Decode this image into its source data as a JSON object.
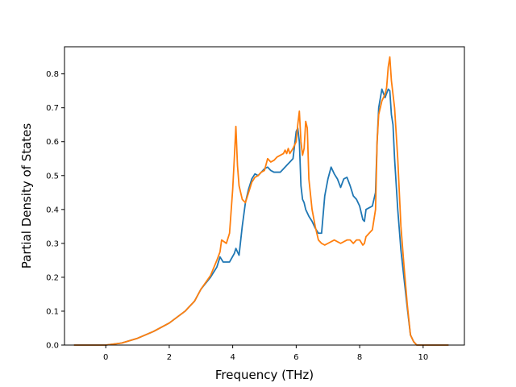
{
  "chart_data": {
    "type": "line",
    "title": "",
    "xlabel": "Frequency (THz)",
    "ylabel": "Partial Density of States",
    "xlim": [
      -1.3,
      11.3
    ],
    "ylim": [
      0.0,
      0.88
    ],
    "xticks": [
      0,
      2,
      4,
      6,
      8,
      10
    ],
    "yticks": [
      0.0,
      0.1,
      0.2,
      0.3,
      0.4,
      0.5,
      0.6,
      0.7,
      0.8
    ],
    "grid": false,
    "legend": "none",
    "series": [
      {
        "color": "#1f77b4",
        "x": [
          -1.0,
          0.0,
          0.5,
          1.0,
          1.5,
          2.0,
          2.5,
          2.8,
          3.0,
          3.3,
          3.5,
          3.6,
          3.7,
          3.9,
          4.05,
          4.1,
          4.2,
          4.3,
          4.4,
          4.5,
          4.6,
          4.7,
          4.8,
          4.9,
          5.0,
          5.1,
          5.2,
          5.3,
          5.5,
          5.6,
          5.7,
          5.8,
          5.9,
          6.0,
          6.05,
          6.1,
          6.15,
          6.2,
          6.25,
          6.3,
          6.4,
          6.5,
          6.6,
          6.7,
          6.8,
          6.9,
          7.0,
          7.1,
          7.2,
          7.3,
          7.4,
          7.5,
          7.6,
          7.7,
          7.8,
          7.9,
          8.0,
          8.1,
          8.15,
          8.2,
          8.3,
          8.4,
          8.5,
          8.55,
          8.6,
          8.7,
          8.8,
          8.9,
          8.95,
          9.0,
          9.05,
          9.1,
          9.2,
          9.3,
          9.5,
          9.6,
          9.7,
          9.8,
          10.0,
          10.8
        ],
        "y": [
          0.0,
          0.0,
          0.006,
          0.02,
          0.04,
          0.065,
          0.1,
          0.13,
          0.165,
          0.2,
          0.23,
          0.26,
          0.245,
          0.245,
          0.27,
          0.285,
          0.265,
          0.35,
          0.42,
          0.46,
          0.49,
          0.505,
          0.5,
          0.51,
          0.52,
          0.525,
          0.515,
          0.51,
          0.51,
          0.52,
          0.53,
          0.54,
          0.55,
          0.63,
          0.64,
          0.6,
          0.47,
          0.43,
          0.42,
          0.4,
          0.38,
          0.365,
          0.345,
          0.33,
          0.33,
          0.44,
          0.49,
          0.525,
          0.505,
          0.49,
          0.465,
          0.49,
          0.495,
          0.47,
          0.44,
          0.43,
          0.41,
          0.37,
          0.365,
          0.4,
          0.405,
          0.41,
          0.45,
          0.6,
          0.7,
          0.755,
          0.73,
          0.755,
          0.75,
          0.68,
          0.65,
          0.55,
          0.4,
          0.28,
          0.11,
          0.03,
          0.01,
          0.0,
          0.0,
          0.0
        ]
      },
      {
        "color": "#ff7f0e",
        "x": [
          -1.0,
          0.0,
          0.5,
          1.0,
          1.5,
          2.0,
          2.5,
          2.8,
          3.0,
          3.3,
          3.5,
          3.6,
          3.65,
          3.8,
          3.9,
          4.0,
          4.05,
          4.1,
          4.15,
          4.2,
          4.3,
          4.4,
          4.5,
          4.6,
          4.7,
          4.8,
          4.9,
          5.0,
          5.1,
          5.2,
          5.3,
          5.4,
          5.5,
          5.6,
          5.65,
          5.7,
          5.75,
          5.8,
          5.9,
          6.0,
          6.05,
          6.1,
          6.15,
          6.2,
          6.25,
          6.3,
          6.35,
          6.4,
          6.5,
          6.6,
          6.7,
          6.8,
          6.9,
          7.0,
          7.2,
          7.4,
          7.6,
          7.7,
          7.8,
          7.9,
          8.0,
          8.1,
          8.15,
          8.2,
          8.3,
          8.4,
          8.5,
          8.55,
          8.6,
          8.7,
          8.8,
          8.85,
          8.9,
          8.95,
          9.0,
          9.1,
          9.2,
          9.3,
          9.4,
          9.5,
          9.6,
          9.7,
          9.8,
          10.0,
          10.8
        ],
        "y": [
          0.0,
          0.0,
          0.006,
          0.02,
          0.04,
          0.065,
          0.1,
          0.13,
          0.165,
          0.205,
          0.25,
          0.275,
          0.31,
          0.3,
          0.33,
          0.46,
          0.55,
          0.645,
          0.53,
          0.47,
          0.43,
          0.42,
          0.45,
          0.48,
          0.495,
          0.5,
          0.51,
          0.515,
          0.55,
          0.54,
          0.545,
          0.555,
          0.56,
          0.565,
          0.575,
          0.565,
          0.58,
          0.565,
          0.58,
          0.6,
          0.65,
          0.69,
          0.6,
          0.56,
          0.58,
          0.66,
          0.64,
          0.49,
          0.4,
          0.35,
          0.31,
          0.3,
          0.295,
          0.3,
          0.31,
          0.3,
          0.31,
          0.31,
          0.3,
          0.31,
          0.31,
          0.295,
          0.3,
          0.32,
          0.33,
          0.34,
          0.4,
          0.6,
          0.68,
          0.72,
          0.74,
          0.76,
          0.82,
          0.85,
          0.78,
          0.7,
          0.55,
          0.35,
          0.23,
          0.12,
          0.03,
          0.01,
          0.0,
          0.0,
          0.0
        ]
      }
    ]
  }
}
